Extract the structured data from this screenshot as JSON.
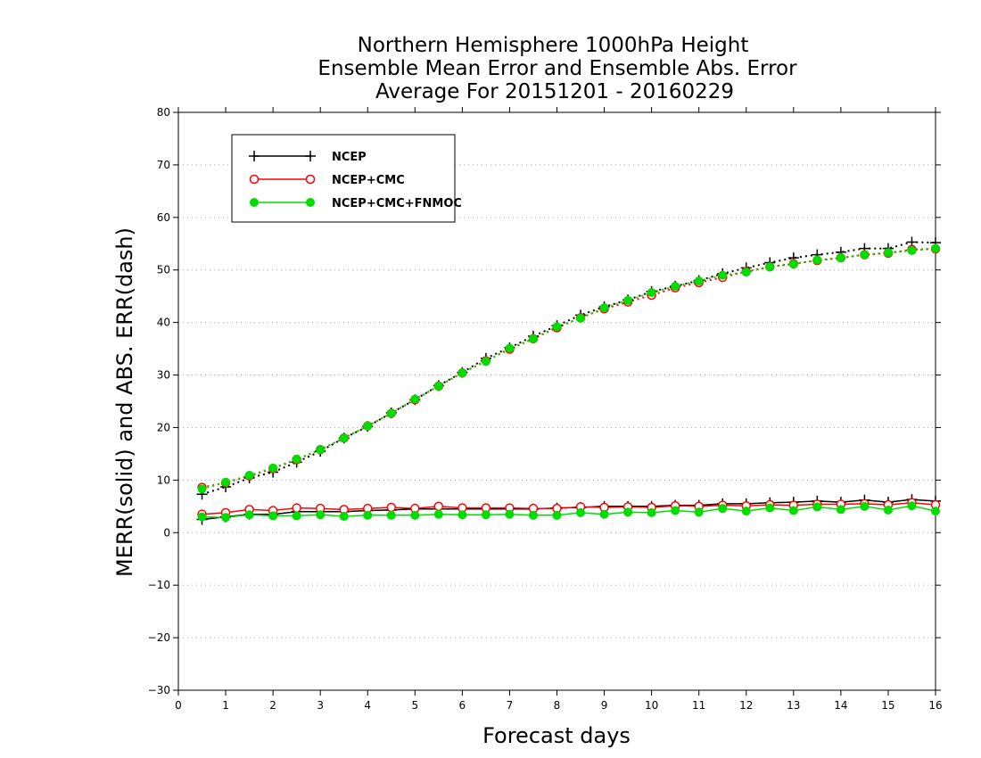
{
  "chart_data": {
    "type": "line",
    "title_lines": [
      "Northern Hemisphere 1000hPa Height",
      "Ensemble Mean Error and Ensemble Abs. Error",
      "Average For 20151201 - 20160229"
    ],
    "xlabel": "Forecast days",
    "ylabel": "MERR(solid) and ABS. ERR(dash)",
    "xlim": [
      0,
      16
    ],
    "ylim": [
      -30,
      80
    ],
    "xticks": [
      0,
      1,
      2,
      3,
      4,
      5,
      6,
      7,
      8,
      9,
      10,
      11,
      12,
      13,
      14,
      15,
      16
    ],
    "yticks": [
      -30,
      -20,
      -10,
      0,
      10,
      20,
      30,
      40,
      50,
      60,
      70,
      80
    ],
    "grid": "horizontal dotted",
    "legend_position": "top-left",
    "x": [
      0.5,
      1,
      1.5,
      2,
      2.5,
      3,
      3.5,
      4,
      4.5,
      5,
      5.5,
      6,
      6.5,
      7,
      7.5,
      8,
      8.5,
      9,
      9.5,
      10,
      10.5,
      11,
      11.5,
      12,
      12.5,
      13,
      13.5,
      14,
      14.5,
      15,
      15.5,
      16
    ],
    "series": [
      {
        "name": "NCEP",
        "color": "#000000",
        "marker": "plus",
        "merr": [
          2.5,
          3.0,
          3.5,
          3.5,
          4.0,
          4.0,
          4.0,
          4.2,
          4.3,
          4.5,
          4.5,
          4.5,
          4.5,
          4.5,
          4.5,
          4.7,
          4.8,
          5.0,
          5.0,
          5.0,
          5.2,
          5.2,
          5.5,
          5.5,
          5.7,
          5.8,
          6.0,
          5.8,
          6.2,
          5.8,
          6.3,
          6.0
        ],
        "abs_err": [
          7.3,
          8.7,
          10.4,
          11.5,
          13.4,
          15.5,
          18.0,
          20.2,
          22.8,
          25.3,
          28.0,
          30.5,
          33.2,
          35.2,
          37.4,
          39.4,
          41.4,
          43.0,
          44.3,
          45.9,
          46.9,
          48.0,
          49.3,
          50.4,
          51.4,
          52.3,
          52.9,
          53.4,
          54.1,
          54.1,
          55.3,
          55.2
        ]
      },
      {
        "name": "NCEP+CMC",
        "color": "#ff0000",
        "marker": "open-circle",
        "merr": [
          3.5,
          3.8,
          4.4,
          4.2,
          4.7,
          4.6,
          4.4,
          4.6,
          4.8,
          4.6,
          5.0,
          4.7,
          4.7,
          4.7,
          4.6,
          4.6,
          4.9,
          4.8,
          4.9,
          4.8,
          5.1,
          5.0,
          5.2,
          5.1,
          5.3,
          5.2,
          5.4,
          5.4,
          5.5,
          5.3,
          5.7,
          5.3
        ],
        "abs_err": [
          8.6,
          9.5,
          10.8,
          12.2,
          13.9,
          15.8,
          18.0,
          20.3,
          22.7,
          25.3,
          27.9,
          30.4,
          32.7,
          34.9,
          36.9,
          39.0,
          40.9,
          42.6,
          43.9,
          45.2,
          46.6,
          47.6,
          48.6,
          49.7,
          50.6,
          51.2,
          51.8,
          52.3,
          52.9,
          53.2,
          53.9,
          54.0
        ]
      },
      {
        "name": "NCEP+CMC+FNMOC",
        "color": "#00dd00",
        "marker": "filled-circle",
        "merr": [
          3.0,
          2.9,
          3.4,
          3.2,
          3.2,
          3.4,
          3.1,
          3.3,
          3.3,
          3.3,
          3.5,
          3.4,
          3.4,
          3.5,
          3.3,
          3.3,
          3.8,
          3.5,
          3.9,
          3.8,
          4.2,
          3.9,
          4.6,
          4.1,
          4.7,
          4.2,
          4.9,
          4.4,
          5.0,
          4.3,
          5.1,
          4.1
        ],
        "abs_err": [
          8.3,
          9.6,
          10.9,
          12.3,
          14.0,
          15.8,
          18.0,
          20.3,
          22.7,
          25.4,
          27.9,
          30.4,
          32.6,
          35.1,
          36.9,
          39.2,
          40.8,
          42.8,
          44.2,
          45.7,
          46.9,
          47.9,
          49.0,
          49.6,
          50.6,
          51.1,
          51.9,
          52.3,
          52.9,
          53.3,
          53.7,
          54.1
        ]
      }
    ]
  }
}
